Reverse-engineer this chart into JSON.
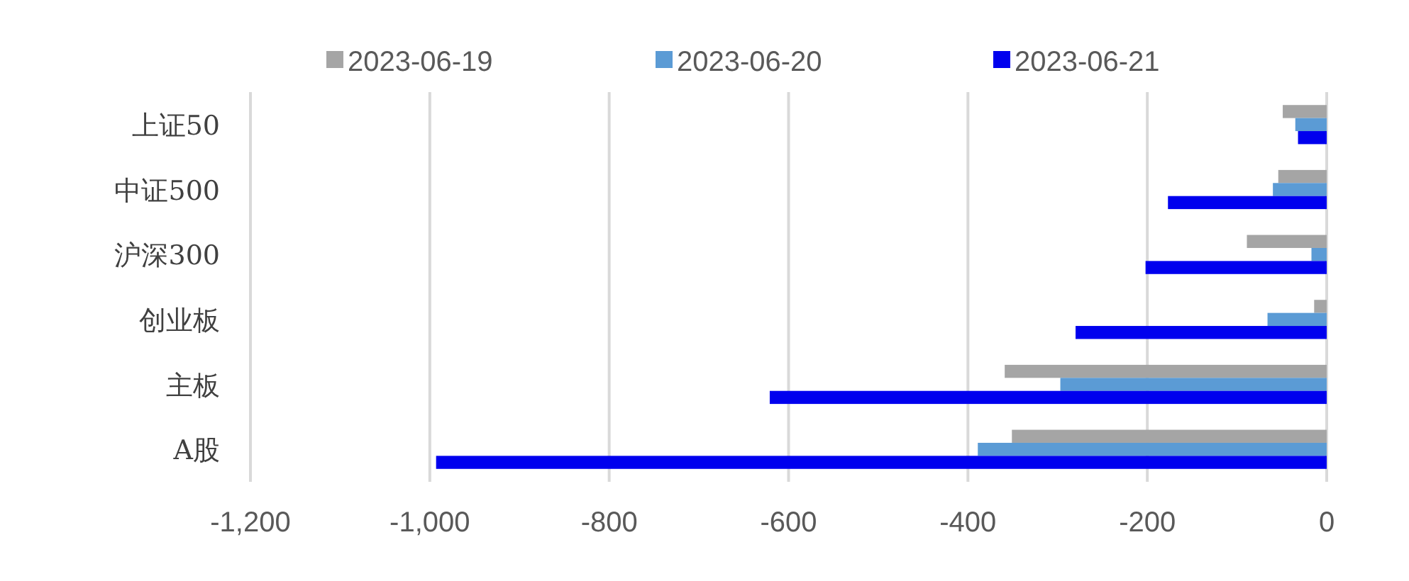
{
  "chart_data": {
    "type": "bar",
    "orientation": "horizontal",
    "categories": [
      "上证50",
      "中证500",
      "沪深300",
      "创业板",
      "主板",
      "A股"
    ],
    "series": [
      {
        "name": "2023-06-19",
        "color": "#a5a5a5",
        "values": [
          -49,
          -54,
          -89,
          -14,
          -359,
          -351
        ]
      },
      {
        "name": "2023-06-20",
        "color": "#5b9bd5",
        "values": [
          -35,
          -60,
          -17,
          -66,
          -297,
          -389
        ]
      },
      {
        "name": "2023-06-21",
        "color": "#0000ee",
        "values": [
          -32,
          -177,
          -202,
          -280,
          -621,
          -993
        ]
      }
    ],
    "xlim": [
      -1200,
      0
    ],
    "xticks": [
      {
        "value": -1200,
        "label": "-1,200"
      },
      {
        "value": -1000,
        "label": "-1,000"
      },
      -800,
      -600,
      -400,
      -200,
      0
    ],
    "grid": "x",
    "legend": "top"
  }
}
